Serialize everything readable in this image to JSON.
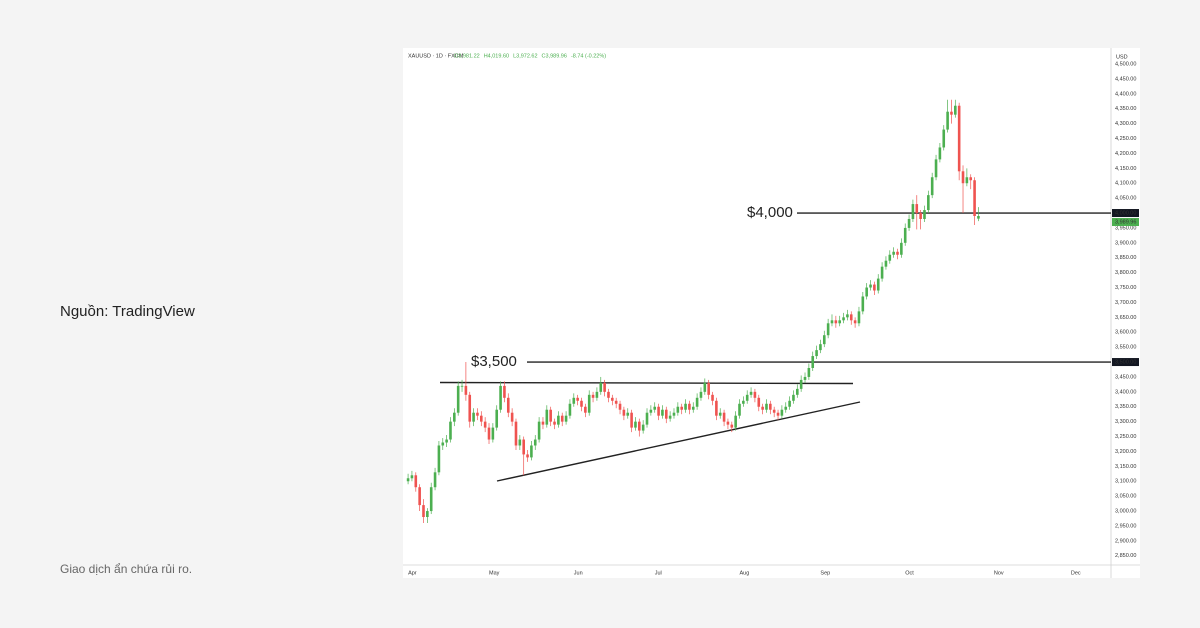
{
  "source": "Nguồn: TradingView",
  "disclaimer": "Giao dịch ẩn chứa rủi ro.",
  "chart_data": {
    "type": "candlestick",
    "symbol": "XAUUSD · 1D · FXCM",
    "ohlc_header": [
      {
        "value": 3981.22,
        "label": "O3,981.22"
      },
      {
        "value": 4019.6,
        "label": "H4,019.60"
      },
      {
        "value": 3972.62,
        "label": "L3,972.62"
      },
      {
        "value": 3989.96,
        "label": "C3,989.96"
      },
      {
        "value": -8.74,
        "label": "-8.74 (-0.22%)"
      }
    ],
    "currency": "USD",
    "up_color": "#4caf50",
    "down_color": "#ef5350",
    "xlim": [
      -0.8,
      182.4
    ],
    "xticks": [
      {
        "value": 0,
        "label": "Apr"
      },
      {
        "value": 21,
        "label": "May"
      },
      {
        "value": 43,
        "label": "Jun"
      },
      {
        "value": 64,
        "label": "Jul"
      },
      {
        "value": 86,
        "label": "Aug"
      },
      {
        "value": 107,
        "label": "Sep"
      },
      {
        "value": 129,
        "label": "Oct"
      },
      {
        "value": 152,
        "label": "Nov"
      },
      {
        "value": 172,
        "label": "Dec"
      }
    ],
    "ylim": [
      2819,
      4547
    ],
    "yticks": [
      {
        "value": 2850,
        "label": "2,850.00"
      },
      {
        "value": 2900,
        "label": "2,900.00"
      },
      {
        "value": 2950,
        "label": "2,950.00"
      },
      {
        "value": 3000,
        "label": "3,000.00"
      },
      {
        "value": 3050,
        "label": "3,050.00"
      },
      {
        "value": 3100,
        "label": "3,100.00"
      },
      {
        "value": 3150,
        "label": "3,150.00"
      },
      {
        "value": 3200,
        "label": "3,200.00"
      },
      {
        "value": 3250,
        "label": "3,250.00"
      },
      {
        "value": 3300,
        "label": "3,300.00"
      },
      {
        "value": 3350,
        "label": "3,350.00"
      },
      {
        "value": 3400,
        "label": "3,400.00"
      },
      {
        "value": 3450,
        "label": "3,450.00"
      },
      {
        "value": 3500,
        "label": "3,500.00"
      },
      {
        "value": 3550,
        "label": "3,550.00"
      },
      {
        "value": 3600,
        "label": "3,600.00"
      },
      {
        "value": 3650,
        "label": "3,650.00"
      },
      {
        "value": 3700,
        "label": "3,700.00"
      },
      {
        "value": 3750,
        "label": "3,750.00"
      },
      {
        "value": 3800,
        "label": "3,800.00"
      },
      {
        "value": 3850,
        "label": "3,850.00"
      },
      {
        "value": 3900,
        "label": "3,900.00"
      },
      {
        "value": 3950,
        "label": "3,950.00"
      },
      {
        "value": 4000,
        "label": "4,000.00"
      },
      {
        "value": 4050,
        "label": "4,050.00"
      },
      {
        "value": 4100,
        "label": "4,100.00"
      },
      {
        "value": 4150,
        "label": "4,150.00"
      },
      {
        "value": 4200,
        "label": "4,200.00"
      },
      {
        "value": 4250,
        "label": "4,250.00"
      },
      {
        "value": 4300,
        "label": "4,300.00"
      },
      {
        "value": 4350,
        "label": "4,350.00"
      },
      {
        "value": 4400,
        "label": "4,400.00"
      },
      {
        "value": 4450,
        "label": "4,450.00"
      },
      {
        "value": 4500,
        "label": "4,500.00"
      }
    ],
    "levels": [
      {
        "value": 3500,
        "label": "$3,500"
      },
      {
        "value": 4000,
        "label": "$4,000"
      }
    ],
    "last_price": {
      "value": 3989.96,
      "label": "3,989.96"
    },
    "candles": [
      [
        3100,
        3125,
        3090,
        3110
      ],
      [
        3110,
        3135,
        3100,
        3120
      ],
      [
        3120,
        3130,
        3065,
        3080
      ],
      [
        3080,
        3090,
        3000,
        3020
      ],
      [
        3020,
        3040,
        2960,
        2980
      ],
      [
        2980,
        3010,
        2960,
        3000
      ],
      [
        3000,
        3095,
        2990,
        3080
      ],
      [
        3080,
        3145,
        3070,
        3130
      ],
      [
        3130,
        3235,
        3120,
        3220
      ],
      [
        3220,
        3245,
        3205,
        3230
      ],
      [
        3230,
        3255,
        3215,
        3240
      ],
      [
        3240,
        3315,
        3230,
        3300
      ],
      [
        3300,
        3345,
        3285,
        3330
      ],
      [
        3330,
        3435,
        3320,
        3420
      ],
      [
        3420,
        3440,
        3400,
        3420
      ],
      [
        3420,
        3500,
        3370,
        3390
      ],
      [
        3390,
        3400,
        3280,
        3300
      ],
      [
        3300,
        3345,
        3285,
        3330
      ],
      [
        3330,
        3345,
        3305,
        3320
      ],
      [
        3320,
        3335,
        3285,
        3300
      ],
      [
        3300,
        3315,
        3265,
        3280
      ],
      [
        3280,
        3295,
        3225,
        3240
      ],
      [
        3240,
        3295,
        3230,
        3280
      ],
      [
        3280,
        3355,
        3270,
        3340
      ],
      [
        3340,
        3435,
        3330,
        3420
      ],
      [
        3420,
        3435,
        3365,
        3380
      ],
      [
        3380,
        3395,
        3315,
        3330
      ],
      [
        3330,
        3345,
        3285,
        3300
      ],
      [
        3300,
        3310,
        3205,
        3220
      ],
      [
        3220,
        3255,
        3205,
        3240
      ],
      [
        3240,
        3250,
        3120,
        3190
      ],
      [
        3190,
        3205,
        3165,
        3180
      ],
      [
        3180,
        3235,
        3170,
        3220
      ],
      [
        3220,
        3255,
        3205,
        3240
      ],
      [
        3240,
        3315,
        3230,
        3300
      ],
      [
        3300,
        3315,
        3275,
        3290
      ],
      [
        3290,
        3355,
        3280,
        3340
      ],
      [
        3340,
        3350,
        3285,
        3300
      ],
      [
        3300,
        3310,
        3275,
        3290
      ],
      [
        3290,
        3335,
        3280,
        3320
      ],
      [
        3320,
        3330,
        3285,
        3300
      ],
      [
        3300,
        3335,
        3290,
        3320
      ],
      [
        3320,
        3375,
        3310,
        3360
      ],
      [
        3360,
        3395,
        3350,
        3380
      ],
      [
        3380,
        3390,
        3355,
        3370
      ],
      [
        3370,
        3380,
        3335,
        3350
      ],
      [
        3350,
        3360,
        3315,
        3330
      ],
      [
        3330,
        3405,
        3320,
        3390
      ],
      [
        3390,
        3400,
        3365,
        3380
      ],
      [
        3380,
        3415,
        3370,
        3400
      ],
      [
        3400,
        3450,
        3390,
        3430
      ],
      [
        3430,
        3440,
        3385,
        3400
      ],
      [
        3400,
        3410,
        3365,
        3380
      ],
      [
        3380,
        3390,
        3355,
        3370
      ],
      [
        3370,
        3380,
        3345,
        3360
      ],
      [
        3360,
        3370,
        3325,
        3340
      ],
      [
        3340,
        3350,
        3305,
        3320
      ],
      [
        3320,
        3345,
        3310,
        3330
      ],
      [
        3330,
        3340,
        3265,
        3280
      ],
      [
        3280,
        3315,
        3270,
        3300
      ],
      [
        3300,
        3310,
        3250,
        3270
      ],
      [
        3270,
        3305,
        3260,
        3290
      ],
      [
        3290,
        3345,
        3280,
        3330
      ],
      [
        3330,
        3355,
        3320,
        3340
      ],
      [
        3340,
        3365,
        3330,
        3350
      ],
      [
        3350,
        3360,
        3305,
        3320
      ],
      [
        3320,
        3355,
        3310,
        3340
      ],
      [
        3340,
        3350,
        3295,
        3310
      ],
      [
        3310,
        3335,
        3300,
        3320
      ],
      [
        3320,
        3345,
        3310,
        3330
      ],
      [
        3330,
        3365,
        3320,
        3350
      ],
      [
        3350,
        3360,
        3325,
        3340
      ],
      [
        3340,
        3375,
        3330,
        3360
      ],
      [
        3360,
        3370,
        3325,
        3340
      ],
      [
        3340,
        3365,
        3330,
        3350
      ],
      [
        3350,
        3395,
        3340,
        3380
      ],
      [
        3380,
        3415,
        3370,
        3400
      ],
      [
        3400,
        3445,
        3390,
        3430
      ],
      [
        3430,
        3440,
        3375,
        3390
      ],
      [
        3390,
        3400,
        3355,
        3370
      ],
      [
        3370,
        3380,
        3305,
        3320
      ],
      [
        3320,
        3345,
        3310,
        3330
      ],
      [
        3330,
        3340,
        3285,
        3300
      ],
      [
        3300,
        3310,
        3275,
        3290
      ],
      [
        3290,
        3300,
        3265,
        3280
      ],
      [
        3280,
        3335,
        3270,
        3320
      ],
      [
        3320,
        3375,
        3310,
        3360
      ],
      [
        3360,
        3385,
        3350,
        3370
      ],
      [
        3370,
        3405,
        3360,
        3390
      ],
      [
        3390,
        3415,
        3380,
        3400
      ],
      [
        3400,
        3410,
        3365,
        3380
      ],
      [
        3380,
        3390,
        3335,
        3350
      ],
      [
        3350,
        3360,
        3325,
        3340
      ],
      [
        3340,
        3375,
        3330,
        3360
      ],
      [
        3360,
        3370,
        3325,
        3340
      ],
      [
        3340,
        3350,
        3315,
        3330
      ],
      [
        3330,
        3340,
        3305,
        3320
      ],
      [
        3320,
        3355,
        3310,
        3340
      ],
      [
        3340,
        3365,
        3330,
        3350
      ],
      [
        3350,
        3385,
        3340,
        3370
      ],
      [
        3370,
        3405,
        3360,
        3390
      ],
      [
        3390,
        3425,
        3380,
        3410
      ],
      [
        3410,
        3455,
        3400,
        3440
      ],
      [
        3440,
        3465,
        3430,
        3450
      ],
      [
        3450,
        3495,
        3440,
        3480
      ],
      [
        3480,
        3535,
        3470,
        3520
      ],
      [
        3520,
        3555,
        3510,
        3540
      ],
      [
        3540,
        3575,
        3530,
        3560
      ],
      [
        3560,
        3605,
        3550,
        3590
      ],
      [
        3590,
        3645,
        3580,
        3630
      ],
      [
        3630,
        3660,
        3620,
        3640
      ],
      [
        3640,
        3655,
        3615,
        3630
      ],
      [
        3630,
        3655,
        3620,
        3640
      ],
      [
        3640,
        3665,
        3630,
        3650
      ],
      [
        3650,
        3675,
        3640,
        3660
      ],
      [
        3660,
        3670,
        3625,
        3640
      ],
      [
        3640,
        3650,
        3615,
        3630
      ],
      [
        3630,
        3685,
        3620,
        3670
      ],
      [
        3670,
        3735,
        3660,
        3720
      ],
      [
        3720,
        3765,
        3710,
        3750
      ],
      [
        3750,
        3775,
        3740,
        3760
      ],
      [
        3760,
        3770,
        3725,
        3740
      ],
      [
        3740,
        3795,
        3730,
        3780
      ],
      [
        3780,
        3835,
        3770,
        3820
      ],
      [
        3820,
        3855,
        3810,
        3840
      ],
      [
        3840,
        3875,
        3830,
        3860
      ],
      [
        3860,
        3885,
        3850,
        3870
      ],
      [
        3870,
        3880,
        3845,
        3860
      ],
      [
        3860,
        3915,
        3850,
        3900
      ],
      [
        3900,
        3965,
        3890,
        3950
      ],
      [
        3950,
        3995,
        3940,
        3980
      ],
      [
        3980,
        4045,
        3970,
        4030
      ],
      [
        4030,
        4060,
        3945,
        4000
      ],
      [
        4000,
        4010,
        3945,
        3980
      ],
      [
        3980,
        4025,
        3970,
        4010
      ],
      [
        4010,
        4075,
        4000,
        4060
      ],
      [
        4060,
        4135,
        4050,
        4120
      ],
      [
        4120,
        4195,
        4110,
        4180
      ],
      [
        4180,
        4235,
        4170,
        4220
      ],
      [
        4220,
        4295,
        4210,
        4280
      ],
      [
        4280,
        4380,
        4270,
        4340
      ],
      [
        4340,
        4380,
        4300,
        4330
      ],
      [
        4330,
        4380,
        4320,
        4360
      ],
      [
        4360,
        4370,
        4110,
        4140
      ],
      [
        4140,
        4160,
        4000,
        4100
      ],
      [
        4100,
        4150,
        4090,
        4120
      ],
      [
        4120,
        4130,
        4080,
        4110
      ],
      [
        4110,
        4120,
        3960,
        3990
      ],
      [
        3981.22,
        4019.6,
        3972.62,
        3989.96
      ]
    ]
  }
}
